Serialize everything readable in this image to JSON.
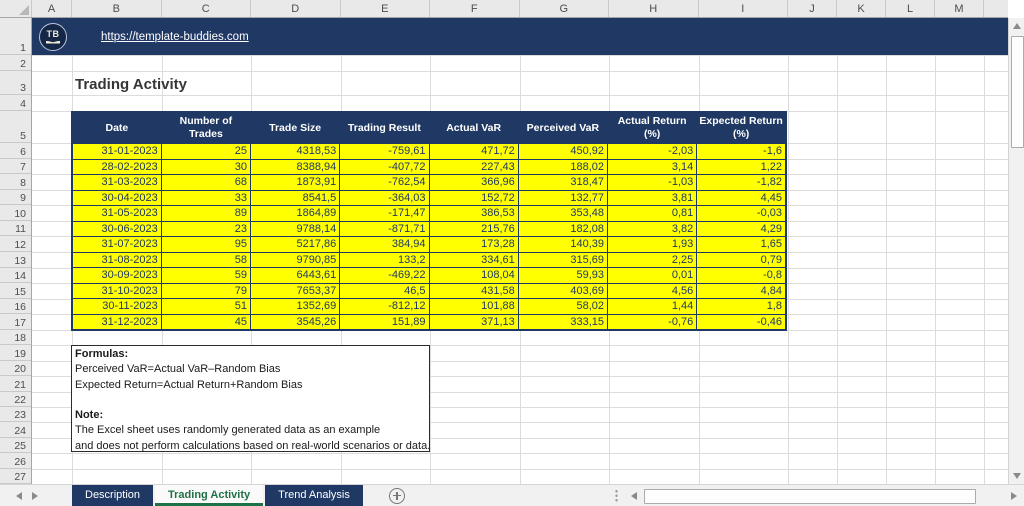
{
  "banner": {
    "url_text": "https://template-buddies.com",
    "logo_text": "TB"
  },
  "title": "Trading Activity",
  "spreadsheet": {
    "column_letters": [
      "A",
      "B",
      "C",
      "D",
      "E",
      "F",
      "G",
      "H",
      "I",
      "J",
      "K",
      "L",
      "M"
    ],
    "row_numbers": [
      "1",
      "2",
      "3",
      "4",
      "5",
      "6",
      "7",
      "8",
      "9",
      "10",
      "11",
      "12",
      "13",
      "14",
      "15",
      "16",
      "17",
      "18",
      "19",
      "20",
      "21",
      "22",
      "23",
      "24",
      "25",
      "26",
      "27"
    ]
  },
  "table": {
    "headers": [
      "Date",
      "Number of Trades",
      "Trade Size",
      "Trading Result",
      "Actual VaR",
      "Perceived VaR",
      "Actual Return (%)",
      "Expected Return (%)"
    ],
    "rows": [
      [
        "31-01-2023",
        "25",
        "4318,53",
        "-759,61",
        "471,72",
        "450,92",
        "-2,03",
        "-1,6"
      ],
      [
        "28-02-2023",
        "30",
        "8388,94",
        "-407,72",
        "227,43",
        "188,02",
        "3,14",
        "1,22"
      ],
      [
        "31-03-2023",
        "68",
        "1873,91",
        "-762,54",
        "366,96",
        "318,47",
        "-1,03",
        "-1,82"
      ],
      [
        "30-04-2023",
        "33",
        "8541,5",
        "-364,03",
        "152,72",
        "132,77",
        "3,81",
        "4,45"
      ],
      [
        "31-05-2023",
        "89",
        "1864,89",
        "-171,47",
        "386,53",
        "353,48",
        "0,81",
        "-0,03"
      ],
      [
        "30-06-2023",
        "23",
        "9788,14",
        "-871,71",
        "215,76",
        "182,08",
        "3,82",
        "4,29"
      ],
      [
        "31-07-2023",
        "95",
        "5217,86",
        "384,94",
        "173,28",
        "140,39",
        "1,93",
        "1,65"
      ],
      [
        "31-08-2023",
        "58",
        "9790,85",
        "133,2",
        "334,61",
        "315,69",
        "2,25",
        "0,79"
      ],
      [
        "30-09-2023",
        "59",
        "6443,61",
        "-469,22",
        "108,04",
        "59,93",
        "0,01",
        "-0,8"
      ],
      [
        "31-10-2023",
        "79",
        "7653,37",
        "46,5",
        "431,58",
        "403,69",
        "4,56",
        "4,84"
      ],
      [
        "30-11-2023",
        "51",
        "1352,69",
        "-812,12",
        "101,88",
        "58,02",
        "1,44",
        "1,8"
      ],
      [
        "31-12-2023",
        "45",
        "3545,26",
        "151,89",
        "371,13",
        "333,15",
        "-0,76",
        "-0,46"
      ]
    ]
  },
  "notes": {
    "formulas_label": "Formulas:",
    "formula1": "Perceived VaR=Actual VaR–Random Bias",
    "formula2": "Expected Return=Actual Return+Random Bias",
    "note_label": "Note:",
    "note1": "The Excel sheet uses randomly generated data as an example",
    "note2": "and does not perform calculations based on real-world scenarios or data."
  },
  "sheet_tabs": [
    {
      "label": "Description",
      "active": false
    },
    {
      "label": "Trading Activity",
      "active": true
    },
    {
      "label": "Trend Analysis",
      "active": false
    }
  ],
  "icons": {
    "select_all_corner": "triangle",
    "scroll_up": "up-triangle",
    "scroll_down": "down-triangle",
    "scroll_left": "left-triangle",
    "scroll_right": "right-triangle",
    "add_sheet": "plus-circle"
  },
  "colors": {
    "navy": "#203864",
    "yellow": "#FFFF00",
    "cell_text": "#1F3864",
    "green": "#1E7145"
  }
}
